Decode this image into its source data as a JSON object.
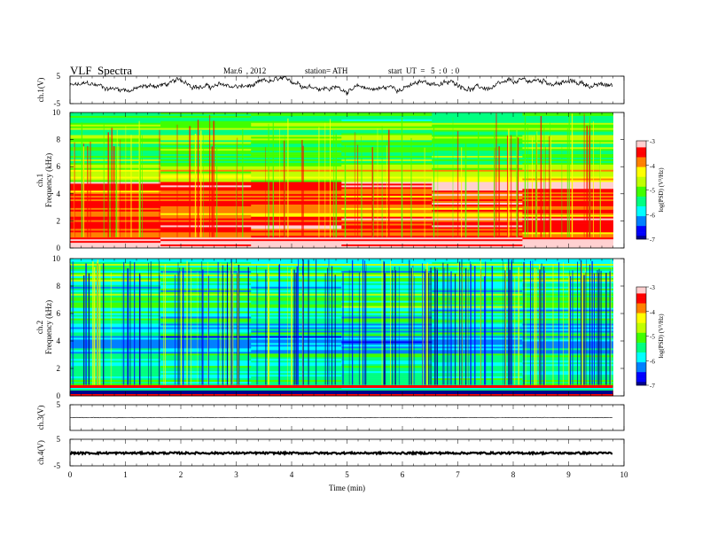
{
  "header": {
    "title": "VLF  Spectra",
    "date": "Mar.6  , 2012",
    "station": "station= ATH",
    "start": "start  UT  =   5  : 0  : 0"
  },
  "chart_data": {
    "type": "multi-panel",
    "x_axis": {
      "label": "Time  (min)",
      "range": [
        0,
        10
      ],
      "ticks": [
        "0",
        "1",
        "2",
        "3",
        "4",
        "5",
        "6",
        "7",
        "8",
        "9",
        "10"
      ]
    },
    "panels": [
      {
        "id": "ch1-waveform",
        "type": "line",
        "ylabel": "ch.1(V)",
        "yticks": [
          "5",
          "-5"
        ],
        "ylim": [
          -5,
          5
        ],
        "description_level": 1.5,
        "amplitude": 1.2
      },
      {
        "id": "ch1-spectrogram",
        "type": "heatmap",
        "ylabel_top": "ch.1",
        "ylabel": "Frequency  (kHz)",
        "yticks": [
          "0",
          "2",
          "4",
          "6",
          "8",
          "10"
        ],
        "ylim": [
          0,
          10
        ],
        "colorbar": {
          "label": "log(PSD) (V²/Hz)",
          "ticks": [
            "-3",
            "-4",
            "-5",
            "-6",
            "-7"
          ],
          "range": [
            -7,
            -3
          ]
        }
      },
      {
        "id": "ch2-spectrogram",
        "type": "heatmap",
        "ylabel_top": "ch.2",
        "ylabel": "Frequency  (kHz)",
        "yticks": [
          "0",
          "2",
          "4",
          "6",
          "8",
          "10"
        ],
        "ylim": [
          0,
          10
        ],
        "colorbar": {
          "label": "log(PSD) (V²/Hz)",
          "ticks": [
            "-3",
            "-4",
            "-5",
            "-6",
            "-7"
          ],
          "range": [
            -7,
            -3
          ]
        }
      },
      {
        "id": "ch3-waveform",
        "type": "line",
        "ylabel": "ch.3(V)",
        "yticks": [
          "5"
        ],
        "ylim": [
          -5,
          5
        ],
        "level": 0.0
      },
      {
        "id": "ch4-waveform",
        "type": "line",
        "ylabel": "ch.4(V)",
        "yticks": [
          "5",
          "-5"
        ],
        "ylim": [
          -5,
          5
        ],
        "level": -0.2
      }
    ],
    "data_end_min": 9.8,
    "colors": {
      "scale": [
        "#00008b",
        "#0000ff",
        "#0080ff",
        "#00ffff",
        "#00ff80",
        "#40ff00",
        "#c0ff00",
        "#ffff00",
        "#ff8000",
        "#ff0000",
        "#ffd0d0"
      ]
    }
  }
}
